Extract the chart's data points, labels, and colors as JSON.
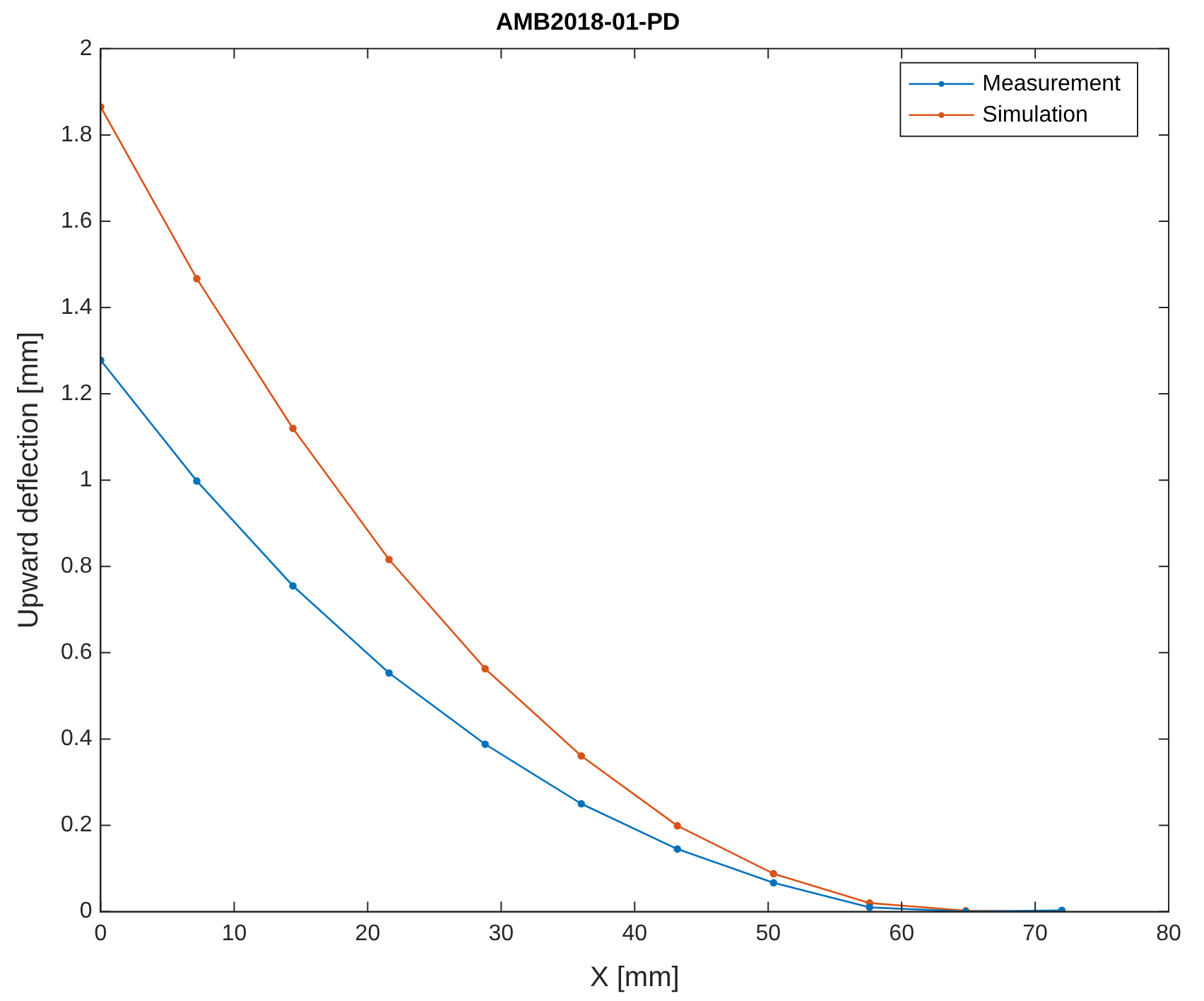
{
  "chart_data": {
    "type": "line",
    "title": "AMB2018-01-PD",
    "xlabel": "X [mm]",
    "ylabel": "Upward deflection [mm]",
    "xlim": [
      0,
      80
    ],
    "xticks": [
      0,
      10,
      20,
      30,
      40,
      50,
      60,
      70,
      80
    ],
    "ylim": [
      0,
      2
    ],
    "yticks": [
      0,
      0.2,
      0.4,
      0.6,
      0.8,
      1,
      1.2,
      1.4,
      1.6,
      1.8,
      2
    ],
    "grid": false,
    "legend": "top right",
    "marker": "circle",
    "line_style": "solid",
    "series": [
      {
        "name": "Measurement",
        "color": "#0072bd",
        "x": [
          0,
          7.2,
          14.4,
          21.6,
          28.8,
          36,
          43.2,
          50.4,
          57.6,
          64.8,
          72
        ],
        "values": [
          1.278,
          0.998,
          0.755,
          0.553,
          0.388,
          0.25,
          0.145,
          0.067,
          0.01,
          0,
          0.003
        ]
      },
      {
        "name": "Simulation",
        "color": "#d95319",
        "x": [
          0,
          7.2,
          14.4,
          21.6,
          28.8,
          36,
          43.2,
          50.4,
          57.6,
          64.8,
          72
        ],
        "values": [
          1.865,
          1.467,
          1.12,
          0.816,
          0.563,
          0.361,
          0.199,
          0.088,
          0.02,
          0.002,
          0
        ]
      }
    ]
  }
}
